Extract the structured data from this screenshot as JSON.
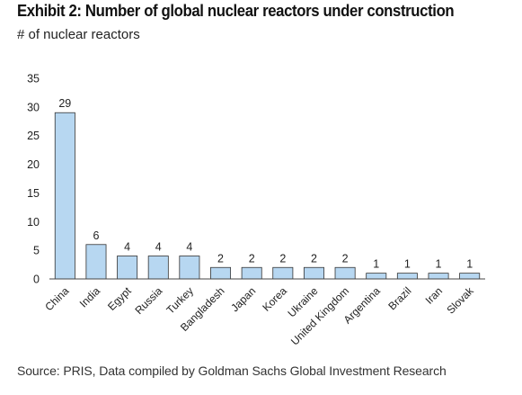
{
  "header": {
    "title": "Exhibit 2: Number of global nuclear reactors under construction",
    "subtitle": "# of nuclear reactors"
  },
  "footer": {
    "source": "Source: PRIS, Data compiled by Goldman Sachs Global Investment Research"
  },
  "chart_data": {
    "type": "bar",
    "title": "",
    "xlabel": "",
    "ylabel": "",
    "categories": [
      "China",
      "India",
      "Egypt",
      "Russia",
      "Turkey",
      "Bangladesh",
      "Japan",
      "Korea",
      "Ukraine",
      "United Kingdom",
      "Argentina",
      "Brazil",
      "Iran",
      "Slovak"
    ],
    "values": [
      29,
      6,
      4,
      4,
      4,
      2,
      2,
      2,
      2,
      2,
      1,
      1,
      1,
      1
    ],
    "ylim": [
      0,
      35
    ],
    "yticks": [
      0,
      5,
      10,
      15,
      20,
      25,
      30,
      35
    ],
    "grid": false,
    "legend": "none",
    "data_labels": true,
    "bar_color": "#b7d7f1",
    "bar_edge_color": "#333333"
  }
}
